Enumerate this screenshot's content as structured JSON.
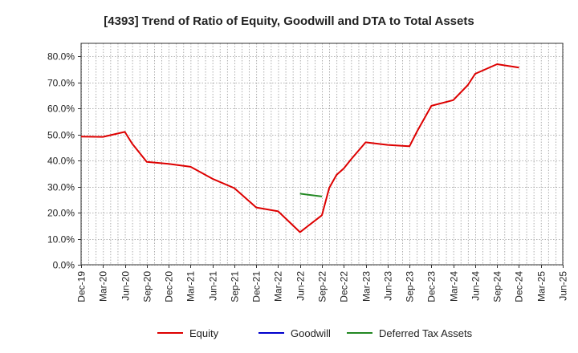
{
  "chart_data": {
    "type": "line",
    "title": "[4393]  Trend of Ratio of Equity, Goodwill and DTA to Total Assets",
    "xlabel": "",
    "ylabel": "",
    "ylim": [
      0,
      0.85
    ],
    "yticks": [
      0,
      0.1,
      0.2,
      0.3,
      0.4,
      0.5,
      0.6,
      0.7,
      0.8
    ],
    "ytick_labels": [
      "0.0%",
      "10.0%",
      "20.0%",
      "30.0%",
      "40.0%",
      "50.0%",
      "60.0%",
      "70.0%",
      "80.0%"
    ],
    "x_range_months": [
      0,
      66
    ],
    "xticks": [
      {
        "m": 0,
        "label": "Dec-19"
      },
      {
        "m": 3,
        "label": "Mar-20"
      },
      {
        "m": 6,
        "label": "Jun-20"
      },
      {
        "m": 9,
        "label": "Sep-20"
      },
      {
        "m": 12,
        "label": "Dec-20"
      },
      {
        "m": 15,
        "label": "Mar-21"
      },
      {
        "m": 18,
        "label": "Jun-21"
      },
      {
        "m": 21,
        "label": "Sep-21"
      },
      {
        "m": 24,
        "label": "Dec-21"
      },
      {
        "m": 27,
        "label": "Mar-22"
      },
      {
        "m": 30,
        "label": "Jun-22"
      },
      {
        "m": 33,
        "label": "Sep-22"
      },
      {
        "m": 36,
        "label": "Dec-22"
      },
      {
        "m": 39,
        "label": "Mar-23"
      },
      {
        "m": 42,
        "label": "Jun-23"
      },
      {
        "m": 45,
        "label": "Sep-23"
      },
      {
        "m": 48,
        "label": "Dec-23"
      },
      {
        "m": 51,
        "label": "Mar-24"
      },
      {
        "m": 54,
        "label": "Jun-24"
      },
      {
        "m": 57,
        "label": "Sep-24"
      },
      {
        "m": 60,
        "label": "Dec-24"
      },
      {
        "m": 63,
        "label": "Mar-25"
      },
      {
        "m": 66,
        "label": "Jun-25"
      }
    ],
    "grid": true,
    "legend_position": "bottom",
    "series": [
      {
        "name": "Equity",
        "color": "#dd0000",
        "points": [
          {
            "m": 0,
            "v": 0.492
          },
          {
            "m": 3,
            "v": 0.491
          },
          {
            "m": 6,
            "v": 0.51
          },
          {
            "m": 7,
            "v": 0.465
          },
          {
            "m": 9,
            "v": 0.395
          },
          {
            "m": 12,
            "v": 0.387
          },
          {
            "m": 15,
            "v": 0.376
          },
          {
            "m": 18,
            "v": 0.33
          },
          {
            "m": 21,
            "v": 0.294
          },
          {
            "m": 24,
            "v": 0.22
          },
          {
            "m": 27,
            "v": 0.205
          },
          {
            "m": 30,
            "v": 0.125
          },
          {
            "m": 33,
            "v": 0.19
          },
          {
            "m": 34,
            "v": 0.295
          },
          {
            "m": 35,
            "v": 0.345
          },
          {
            "m": 36,
            "v": 0.37
          },
          {
            "m": 37,
            "v": 0.405
          },
          {
            "m": 39,
            "v": 0.47
          },
          {
            "m": 42,
            "v": 0.46
          },
          {
            "m": 45,
            "v": 0.455
          },
          {
            "m": 46,
            "v": 0.51
          },
          {
            "m": 48,
            "v": 0.61
          },
          {
            "m": 51,
            "v": 0.632
          },
          {
            "m": 53,
            "v": 0.69
          },
          {
            "m": 54,
            "v": 0.733
          },
          {
            "m": 57,
            "v": 0.77
          },
          {
            "m": 60,
            "v": 0.757
          }
        ]
      },
      {
        "name": "Goodwill",
        "color": "#0000cc",
        "points": []
      },
      {
        "name": "Deferred Tax Assets",
        "color": "#228822",
        "points": [
          {
            "m": 30,
            "v": 0.273
          },
          {
            "m": 33,
            "v": 0.262
          }
        ]
      }
    ]
  }
}
